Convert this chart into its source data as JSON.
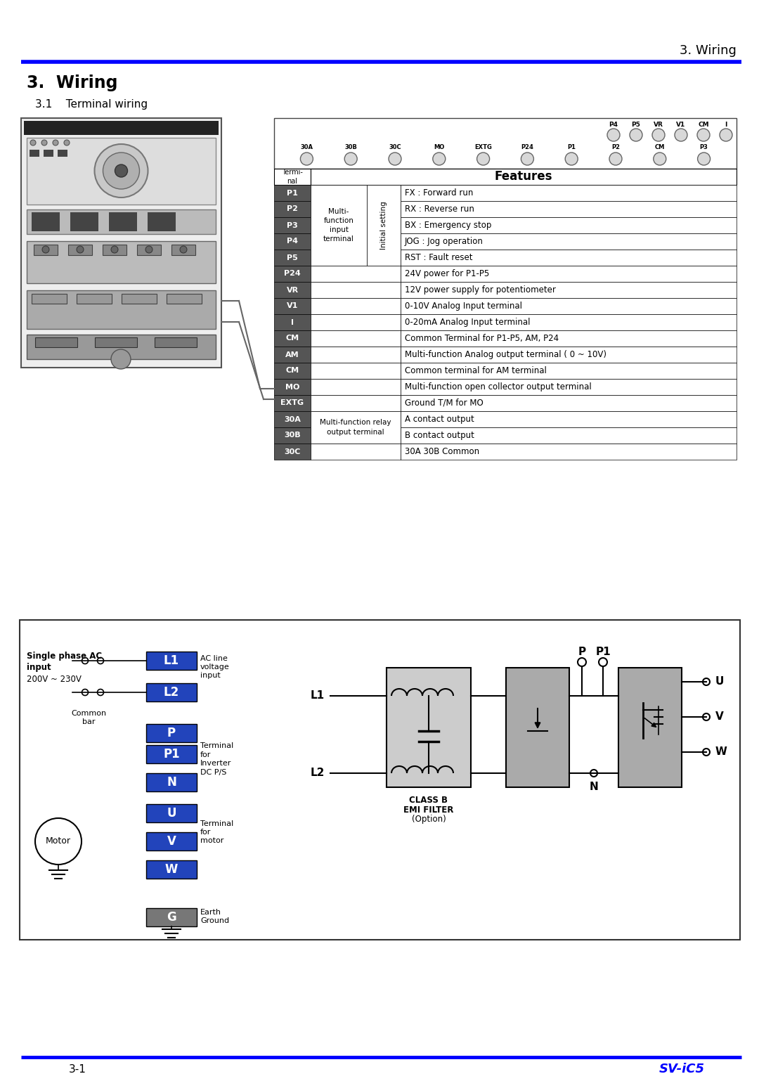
{
  "title_top_right": "3. Wiring",
  "title_main": "3.  Wiring",
  "subtitle": "3.1    Terminal wiring",
  "blue_color": "#0000FF",
  "footer_left": "3-1",
  "footer_right": "SV-iC5",
  "rows_data": [
    [
      "P1",
      "FX : Forward run"
    ],
    [
      "P2",
      "RX : Reverse run"
    ],
    [
      "P3",
      "BX : Emergency stop"
    ],
    [
      "P4",
      "JOG : Jog operation"
    ],
    [
      "P5",
      "RST : Fault reset"
    ],
    [
      "P24",
      "24V power for P1-P5"
    ],
    [
      "VR",
      "12V power supply for potentiometer"
    ],
    [
      "V1",
      "0-10V Analog Input terminal"
    ],
    [
      "I",
      "0-20mA Analog Input terminal"
    ],
    [
      "CM",
      "Common Terminal for P1-P5, AM, P24"
    ],
    [
      "AM",
      "Multi-function Analog output terminal ( 0 ~ 10V)"
    ],
    [
      "CM",
      "Common terminal for AM terminal"
    ],
    [
      "MO",
      "Multi-function open collector output terminal"
    ],
    [
      "EXTG",
      "Ground T/M for MO"
    ],
    [
      "30A",
      "A contact output"
    ],
    [
      "30B",
      "B contact output"
    ],
    [
      "30C",
      "30A 30B Common"
    ]
  ],
  "terminal_dark_bg": [
    "P1",
    "P2",
    "P3",
    "P4",
    "P5",
    "P24",
    "VR",
    "V1",
    "I",
    "CM",
    "AM",
    "MO",
    "EXTG",
    "30A",
    "30B",
    "30C"
  ],
  "top_conn_labels": [
    "P4",
    "P5",
    "VR",
    "V1",
    "CM",
    "I"
  ],
  "bot_conn_labels": [
    "30A",
    "30B",
    "30C",
    "MO",
    "EXTG",
    "P24",
    "P1",
    "P2",
    "CM",
    "P3"
  ]
}
